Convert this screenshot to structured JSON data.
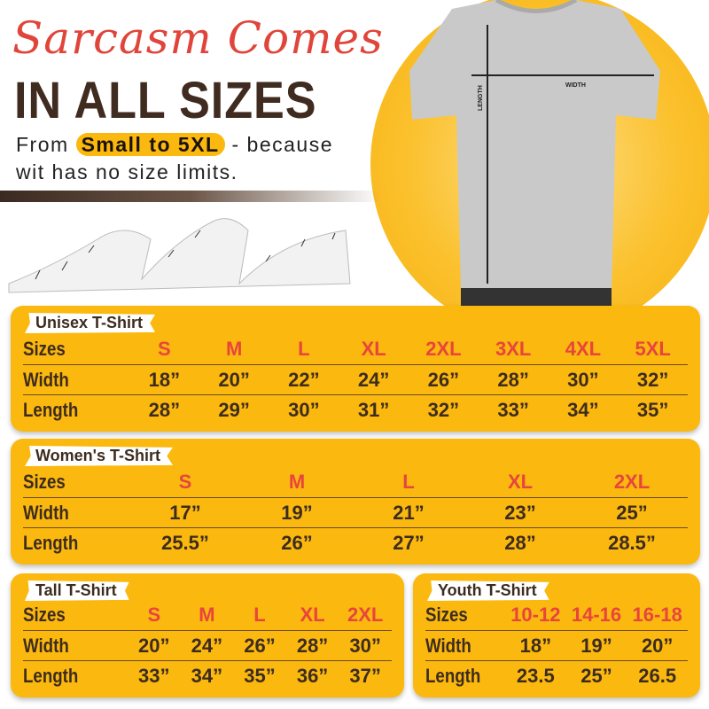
{
  "header": {
    "script_title": "Sarcasm Comes",
    "title": "IN ALL SIZES",
    "subtitle_pre": "From",
    "subtitle_highlight": "Small to 5XL",
    "subtitle_post": "- because",
    "subtitle_line2": "wit has no size limits."
  },
  "shirt": {
    "length_label": "LENGTH",
    "width_label": "WIDTH"
  },
  "colors": {
    "accent": "#fbb80f",
    "text": "#3d2c1e",
    "size_text": "#e8453c"
  },
  "tables": [
    {
      "key": "unisex",
      "title": "Unisex T-Shirt",
      "rows": [
        {
          "label": "Sizes",
          "values": [
            "S",
            "M",
            "L",
            "XL",
            "2XL",
            "3XL",
            "4XL",
            "5XL"
          ]
        },
        {
          "label": "Width",
          "values": [
            "18”",
            "20”",
            "22”",
            "24”",
            "26”",
            "28”",
            "30”",
            "32”"
          ]
        },
        {
          "label": "Length",
          "values": [
            "28”",
            "29”",
            "30”",
            "31”",
            "32”",
            "33”",
            "34”",
            "35”"
          ]
        }
      ]
    },
    {
      "key": "women",
      "title": "Women's T-Shirt",
      "rows": [
        {
          "label": "Sizes",
          "values": [
            "S",
            "M",
            "L",
            "XL",
            "2XL"
          ]
        },
        {
          "label": "Width",
          "values": [
            "17”",
            "19”",
            "21”",
            "23”",
            "25”"
          ]
        },
        {
          "label": "Length",
          "values": [
            "25.5”",
            "26”",
            "27”",
            "28”",
            "28.5”"
          ]
        }
      ]
    },
    {
      "key": "tall",
      "title": "Tall T-Shirt",
      "rows": [
        {
          "label": "Sizes",
          "values": [
            "S",
            "M",
            "L",
            "XL",
            "2XL"
          ]
        },
        {
          "label": "Width",
          "values": [
            "20”",
            "24”",
            "26”",
            "28”",
            "30”"
          ]
        },
        {
          "label": "Length",
          "values": [
            "33”",
            "34”",
            "35”",
            "36”",
            "37”"
          ]
        }
      ]
    },
    {
      "key": "youth",
      "title": "Youth T-Shirt",
      "rows": [
        {
          "label": "Sizes",
          "values": [
            "10-12",
            "14-16",
            "16-18"
          ]
        },
        {
          "label": "Width",
          "values": [
            "18”",
            "19”",
            "20”"
          ]
        },
        {
          "label": "Length",
          "values": [
            "23.5",
            "25”",
            "26.5"
          ]
        }
      ]
    }
  ]
}
